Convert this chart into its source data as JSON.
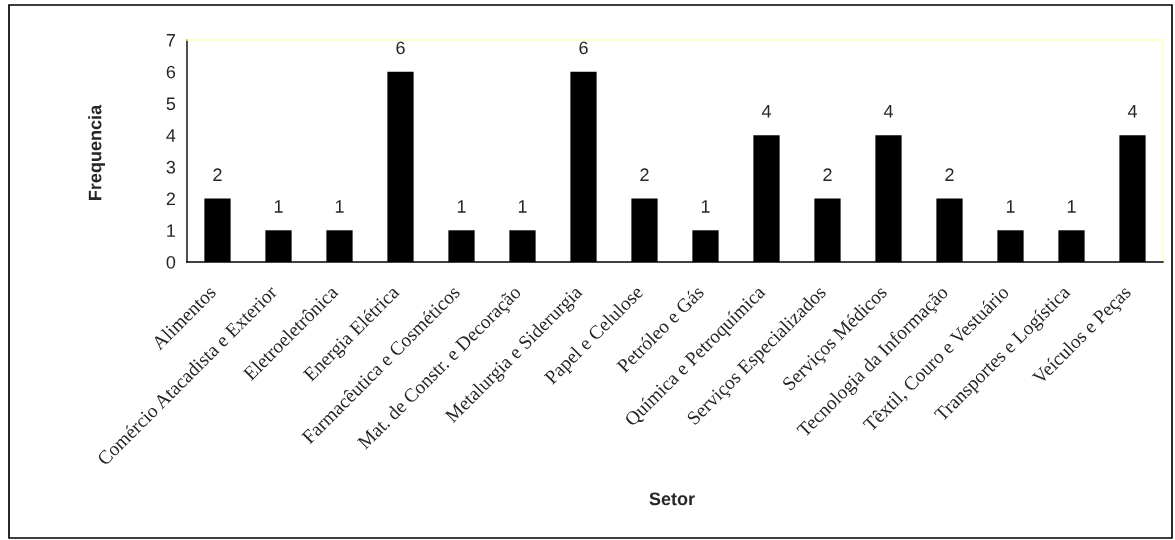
{
  "chart_data": {
    "type": "bar",
    "xlabel": "Setor",
    "ylabel": "Frequencia",
    "categories": [
      "Alimentos",
      "Comércio Atacadista e Exterior",
      "Eletroeletrônica",
      "Energia Elétrica",
      "Farmacêutica e Cosméticos",
      "Mat. de Constr. e Decoração",
      "Metalurgia e Siderurgia",
      "Papel e Celulose",
      "Petróleo e Gás",
      "Química e Petroquímica",
      "Serviços Especializados",
      "Serviços Médicos",
      "Tecnologia da Informação",
      "Têxtil, Couro e Vestuário",
      "Transportes e Logística",
      "Veículos e Peças"
    ],
    "values": [
      2,
      1,
      1,
      6,
      1,
      1,
      6,
      2,
      1,
      4,
      2,
      4,
      2,
      1,
      1,
      4
    ],
    "color": "#000000",
    "ylim": [
      0,
      7
    ],
    "yticks": [
      0,
      1,
      2,
      3,
      4,
      5,
      6,
      7
    ],
    "data_labels": true
  }
}
